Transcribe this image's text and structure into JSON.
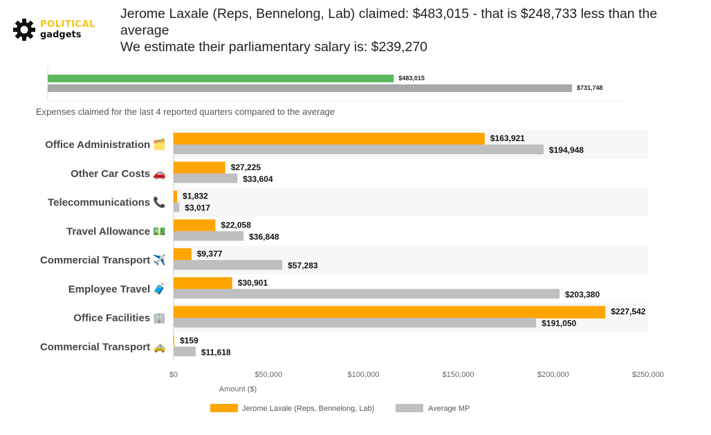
{
  "brand": {
    "line1": "POLITICAL",
    "line2": "gadgets"
  },
  "headline": {
    "line1": "Jerome Laxale (Reps, Bennelong, Lab) claimed: $483,015 - that is $248,733 less than the average",
    "line2": "We estimate their parliamentary salary is: $239,270"
  },
  "colors": {
    "member": "#ffa500",
    "average": "#bfbfbf",
    "total_member": "#5cb85c",
    "total_average": "#a8a8a8",
    "brand": "#f5c518"
  },
  "chart_data": [
    {
      "type": "bar",
      "orientation": "horizontal",
      "series": [
        {
          "values": [
            483015
          ],
          "labels": [
            "$483,015"
          ]
        },
        {
          "values": [
            731748
          ],
          "labels": [
            "$731,748"
          ]
        }
      ]
    },
    {
      "type": "bar",
      "orientation": "horizontal",
      "title": "Expenses claimed for the last 4 reported quarters compared to the average",
      "categories": [
        "Office Administration 🗂️",
        "Other Car Costs 🚗",
        "Telecommunications 📞",
        "Travel Allowance 💵",
        "Commercial Transport ✈️",
        "Employee Travel 🧳",
        "Office Facilities 🏢",
        "Commercial Transport 🚕"
      ],
      "series": [
        {
          "name": "Jerome Laxale  (Reps, Bennelong, Lab)",
          "values": [
            163921,
            27225,
            1832,
            22058,
            9377,
            30901,
            227542,
            159
          ],
          "labels": [
            "$163,921",
            "$27,225",
            "$1,832",
            "$22,058",
            "$9,377",
            "$30,901",
            "$227,542",
            "$159"
          ]
        },
        {
          "name": "Average MP",
          "values": [
            194948,
            33604,
            3017,
            36848,
            57283,
            203380,
            191050,
            11618
          ],
          "labels": [
            "$194,948",
            "$33,604",
            "$3,017",
            "$36,848",
            "$57,283",
            "$203,380",
            "$191,050",
            "$11,618"
          ]
        }
      ],
      "xlabel": "Amount ($)",
      "xlim": [
        0,
        250000
      ],
      "xticks": [
        0,
        50000,
        100000,
        150000,
        200000,
        250000
      ],
      "xtick_labels": [
        "$0",
        "$50,000",
        "$100,000",
        "$150,000",
        "$200,000",
        "$250,000"
      ],
      "legend_position": "bottom",
      "grid": false
    }
  ]
}
